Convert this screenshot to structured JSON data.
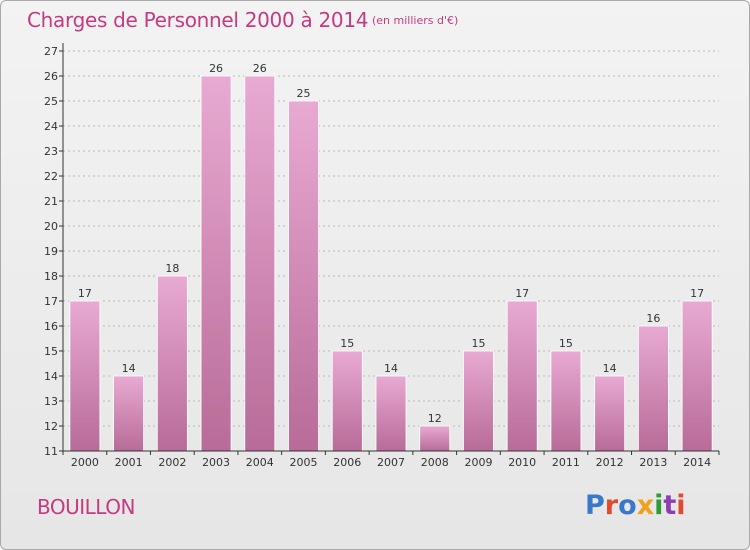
{
  "header": {
    "title": "Charges de Personnel 2000 à 2014",
    "subtitle": "(en milliers d'€)"
  },
  "footer": {
    "commune": "BOUILLON",
    "logo_text": "Proxiti"
  },
  "colors": {
    "bar_top": "#e8aad2",
    "bar_bottom": "#b86b98",
    "title": "#c43b7f",
    "grid": "#b8b8b8"
  },
  "chart_data": {
    "type": "bar",
    "title": "Charges de Personnel 2000 à 2014",
    "subtitle": "(en milliers d'€)",
    "xlabel": "",
    "ylabel": "",
    "categories": [
      "2000",
      "2001",
      "2002",
      "2003",
      "2004",
      "2005",
      "2006",
      "2007",
      "2008",
      "2009",
      "2010",
      "2011",
      "2012",
      "2013",
      "2014"
    ],
    "values": [
      17,
      14,
      18,
      26,
      26,
      25,
      15,
      14,
      12,
      15,
      17,
      15,
      14,
      16,
      17
    ],
    "ylim": [
      11,
      27
    ],
    "yticks": [
      11,
      12,
      13,
      14,
      15,
      16,
      17,
      18,
      19,
      20,
      21,
      22,
      23,
      24,
      25,
      26,
      27
    ],
    "grid": true,
    "grid_style": "dashed horizontal",
    "legend": "none",
    "data_labels": true
  }
}
